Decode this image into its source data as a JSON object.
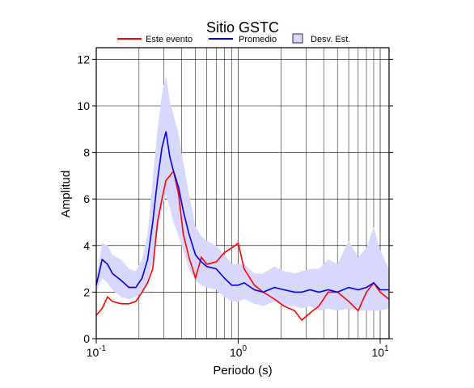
{
  "chart_data": {
    "type": "line",
    "title": "Sitio GSTC",
    "x_label": "Periodo (s)",
    "y_label": "Amplitud",
    "log_x": true,
    "grid": true,
    "xlim": [
      0.1,
      11.55
    ],
    "ylim": [
      0,
      12.5
    ],
    "xticks": [
      {
        "value": 0.1,
        "label": "10^-1"
      },
      {
        "value": 1,
        "label": "10^0"
      },
      {
        "value": 10,
        "label": "10^1"
      }
    ],
    "xgrid_minor": [
      0.2,
      0.3,
      0.4,
      0.5,
      0.6,
      0.7,
      0.8,
      0.9,
      2,
      3,
      4,
      5,
      6,
      7,
      8,
      9
    ],
    "yticks": [
      0,
      2,
      4,
      6,
      8,
      10,
      12
    ],
    "x": [
      0.1,
      0.11,
      0.12,
      0.13,
      0.15,
      0.17,
      0.19,
      0.21,
      0.23,
      0.25,
      0.27,
      0.29,
      0.31,
      0.33,
      0.35,
      0.38,
      0.41,
      0.45,
      0.5,
      0.55,
      0.6,
      0.7,
      0.8,
      0.9,
      1.0,
      1.1,
      1.3,
      1.5,
      1.8,
      2.1,
      2.5,
      2.8,
      3.2,
      3.7,
      4.3,
      5,
      6,
      7,
      8,
      9,
      10,
      11.5
    ],
    "series": [
      {
        "name": "Este evento",
        "color": "#ff0000",
        "values": [
          1.0,
          1.3,
          1.8,
          1.6,
          1.5,
          1.5,
          1.6,
          2.0,
          2.4,
          3.0,
          5.0,
          6.0,
          6.8,
          7.0,
          7.2,
          6.2,
          4.5,
          3.5,
          2.6,
          3.5,
          3.2,
          3.3,
          3.7,
          3.9,
          4.1,
          3.0,
          2.3,
          2.0,
          1.7,
          1.4,
          1.2,
          0.8,
          1.1,
          1.4,
          2.0,
          2.0,
          1.6,
          1.2,
          2.0,
          2.4,
          2.0,
          1.7
        ]
      },
      {
        "name": "Promedio",
        "color": "#0000dd",
        "values": [
          2.3,
          3.4,
          3.2,
          2.8,
          2.5,
          2.2,
          2.2,
          2.6,
          3.4,
          5.0,
          6.8,
          8.2,
          8.9,
          7.8,
          7.2,
          6.5,
          5.5,
          4.5,
          3.6,
          3.3,
          3.1,
          3.0,
          2.6,
          2.3,
          2.3,
          2.4,
          2.1,
          2.0,
          2.2,
          2.1,
          2.0,
          2.0,
          2.1,
          2.0,
          2.1,
          2.0,
          2.2,
          2.1,
          2.2,
          2.4,
          2.1,
          2.1
        ]
      },
      {
        "name": "Desv. Est.",
        "color": "#d8d8ff",
        "band": true,
        "lower": [
          2.0,
          2.6,
          2.4,
          2.1,
          1.8,
          1.7,
          1.8,
          2.0,
          2.4,
          3.4,
          4.6,
          5.6,
          6.2,
          5.6,
          5.0,
          4.4,
          3.8,
          3.0,
          2.5,
          2.3,
          2.2,
          2.1,
          1.8,
          1.6,
          1.6,
          1.7,
          1.5,
          1.4,
          1.6,
          1.4,
          1.4,
          1.3,
          1.4,
          1.2,
          1.3,
          1.2,
          1.3,
          1.2,
          1.2,
          1.2,
          1.2,
          1.3
        ],
        "upper": [
          2.6,
          4.1,
          4.0,
          3.6,
          3.4,
          3.0,
          2.9,
          3.4,
          4.5,
          6.8,
          9.0,
          10.5,
          11.3,
          10.2,
          9.6,
          8.8,
          7.6,
          6.2,
          4.8,
          4.4,
          4.2,
          4.0,
          3.6,
          3.2,
          3.2,
          3.2,
          2.8,
          2.8,
          3.1,
          2.9,
          2.8,
          2.9,
          3.0,
          3.0,
          3.4,
          3.2,
          4.2,
          3.5,
          3.9,
          4.8,
          3.8,
          3.0
        ]
      }
    ]
  }
}
